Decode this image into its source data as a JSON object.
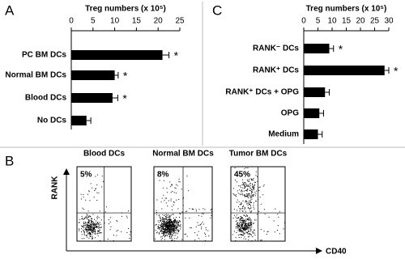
{
  "chart_data": [
    {
      "type": "hbar",
      "panel": "A",
      "title": "Treg numbers (x 10⁵)",
      "categories": [
        "PC BM DCs",
        "Normal BM DCs",
        "Blood DCs",
        "No DCs"
      ],
      "values": [
        21,
        10,
        9.5,
        3.5
      ],
      "errors": [
        1.5,
        0.8,
        1.2,
        1.0
      ],
      "significance": [
        "*",
        "*",
        "*",
        null
      ],
      "color": "#000000",
      "xlim": [
        0,
        25
      ],
      "xticks": [
        0,
        5,
        10,
        15,
        20,
        25
      ]
    },
    {
      "type": "hbar",
      "panel": "C",
      "title": "Treg numbers (x 10⁵)",
      "categories": [
        "RANK⁻ DCs",
        "RANK⁺ DCs",
        "RANK⁺ DCs + OPG",
        "OPG",
        "Medium"
      ],
      "values": [
        9,
        28.5,
        7.5,
        5.5,
        5
      ],
      "errors": [
        1.5,
        1.5,
        1.5,
        1.5,
        1.5
      ],
      "significance": [
        "*",
        "*",
        null,
        null,
        null
      ],
      "color": "#000000",
      "xlim": [
        0,
        30
      ],
      "xticks": [
        0,
        5,
        10,
        15,
        20,
        25,
        30
      ]
    }
  ],
  "flow_panel": {
    "panel": "B",
    "x_label": "CD40",
    "y_label": "RANK",
    "plots": [
      {
        "title": "Blood DCs",
        "percent": "5%"
      },
      {
        "title": "Normal BM DCs",
        "percent": "8%"
      },
      {
        "title": "Tumor BM DCs",
        "percent": "45%"
      }
    ]
  }
}
